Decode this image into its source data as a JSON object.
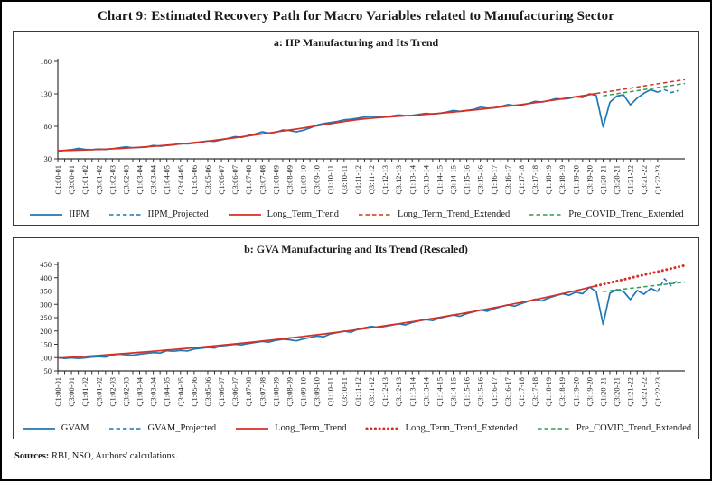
{
  "figure": {
    "title": "Chart 9: Estimated Recovery Path for Macro Variables related to Manufacturing Sector",
    "sources_label": "Sources:",
    "sources_text": " RBI, NSO, Authors' calculations."
  },
  "colors": {
    "blue": "#1f77b4",
    "red": "#d62f24",
    "green": "#2e9e4f",
    "axis": "#333333"
  },
  "chart_data": [
    {
      "type": "line",
      "title": "a: IIP Manufacturing and Its Trend",
      "xlabel": "",
      "ylabel": "",
      "ylim": [
        30,
        180
      ],
      "yticks": [
        30,
        80,
        130,
        180
      ],
      "grid": false,
      "legend_position": "bottom",
      "x_extent": 93,
      "x_tick_labels": [
        "Q1:00-01",
        "Q3:00-01",
        "Q1:01-02",
        "Q3:01-02",
        "Q1:02-03",
        "Q3:02-03",
        "Q1:03-04",
        "Q3:03-04",
        "Q1:04-05",
        "Q3:04-05",
        "Q1:05-06",
        "Q3:05-06",
        "Q1:06-07",
        "Q3:06-07",
        "Q1:07-08",
        "Q3:07-08",
        "Q1:08-09",
        "Q3:08-09",
        "Q1:09-10",
        "Q3:09-10",
        "Q1:10-11",
        "Q3:10-11",
        "Q1:11-12",
        "Q3:11-12",
        "Q1:12-13",
        "Q3:12-13",
        "Q1:13-14",
        "Q3:13-14",
        "Q1:14-15",
        "Q3:14-15",
        "Q1:15-16",
        "Q3:15-16",
        "Q1:16-17",
        "Q3:16-17",
        "Q1:17-18",
        "Q3:17-18",
        "Q1:18-19",
        "Q3:18-19",
        "Q1:19-20",
        "Q3:19-20",
        "Q1:20-21",
        "Q3:20-21",
        "Q1:21-22",
        "Q3:21-22",
        "Q1:22-23"
      ],
      "series": [
        {
          "name": "IIPM",
          "color": "blue",
          "style": "solid",
          "start": 0,
          "values": [
            42,
            43,
            44,
            46,
            44.5,
            44,
            45,
            44.5,
            45.5,
            47,
            48.5,
            47,
            47.5,
            48,
            50.5,
            49.5,
            50.5,
            51.5,
            53.5,
            53,
            54,
            55.5,
            57.5,
            57,
            59,
            61.5,
            64,
            63,
            66,
            68.5,
            71.5,
            69.5,
            71,
            74.5,
            73.5,
            71.5,
            74,
            77.5,
            82,
            84.5,
            86,
            87.5,
            90,
            91,
            92.5,
            94.5,
            95.5,
            94,
            94.5,
            96,
            97.5,
            96.5,
            97,
            98.5,
            100,
            99,
            100,
            102,
            104.5,
            103,
            104.5,
            106,
            109.5,
            108,
            108.5,
            110.5,
            113.5,
            112,
            112.5,
            115,
            118.5,
            117.5,
            119.5,
            122.5,
            122,
            123,
            125.5,
            124.5,
            130,
            127.5,
            79,
            117,
            126.5,
            128.5,
            113,
            123.5,
            131,
            136.5,
            132.5
          ]
        },
        {
          "name": "IIPM_Projected",
          "color": "blue",
          "style": "dashed",
          "start": 88,
          "values": [
            132.5,
            136.5,
            132,
            135
          ]
        },
        {
          "name": "Long_Term_Trend",
          "color": "red",
          "style": "solid",
          "start": 0,
          "values": [
            42.5,
            42.8,
            43.1,
            43.4,
            43.8,
            44.1,
            44.5,
            44.9,
            45.4,
            45.9,
            46.5,
            47.1,
            47.8,
            48.5,
            49.3,
            50.1,
            51,
            51.9,
            52.9,
            53.9,
            55,
            56.1,
            57.3,
            58.5,
            59.8,
            61.1,
            62.5,
            63.9,
            65.4,
            66.9,
            68.4,
            69.9,
            71.4,
            72.9,
            74.4,
            75.9,
            77.5,
            79.1,
            80.8,
            82.5,
            84.2,
            85.9,
            87.5,
            89,
            90.4,
            91.6,
            92.6,
            93.4,
            94.1,
            94.8,
            95.5,
            96.2,
            96.9,
            97.7,
            98.5,
            99.3,
            100.2,
            101.1,
            102.1,
            103.1,
            104.1,
            105.2,
            106.3,
            107.4,
            108.6,
            109.8,
            111,
            112.3,
            113.6,
            115,
            116.4,
            117.8,
            119.3,
            120.8,
            122.3,
            123.9,
            125.5,
            127.1,
            128.8,
            130.5
          ]
        },
        {
          "name": "Long_Term_Trend_Extended",
          "color": "red",
          "style": "dashed",
          "start": 79,
          "values": [
            130.5,
            132.2,
            133.8,
            135.5,
            137.1,
            138.8,
            140.4,
            142.1,
            143.7,
            145.4,
            147,
            148.7,
            150.3,
            152
          ]
        },
        {
          "name": "Pre_COVID_Trend_Extended",
          "color": "green",
          "style": "dashed",
          "start": 80,
          "values": [
            127,
            128.6,
            130.2,
            131.8,
            133.3,
            134.9,
            136.5,
            138.1,
            139.7,
            141.3,
            142.8,
            144.4,
            146
          ]
        }
      ]
    },
    {
      "type": "line",
      "title": "b: GVA Manufacturing and Its Trend (Rescaled)",
      "xlabel": "",
      "ylabel": "",
      "ylim": [
        50,
        450
      ],
      "yticks": [
        50,
        100,
        150,
        200,
        250,
        300,
        350,
        400,
        450
      ],
      "grid": false,
      "legend_position": "bottom",
      "x_extent": 93,
      "x_tick_labels": [
        "Q1:00-01",
        "Q3:00-01",
        "Q1:01-02",
        "Q3:01-02",
        "Q1:02-03",
        "Q3:02-03",
        "Q1:03-04",
        "Q3:03-04",
        "Q1:04-05",
        "Q3:04-05",
        "Q1:05-06",
        "Q3:05-06",
        "Q1:06-07",
        "Q3:06-07",
        "Q1:07-08",
        "Q3:07-08",
        "Q1:08-09",
        "Q3:08-09",
        "Q1:09-10",
        "Q3:09-10",
        "Q1:10-11",
        "Q3:10-11",
        "Q1:11-12",
        "Q3:11-12",
        "Q1:12-13",
        "Q3:12-13",
        "Q1:13-14",
        "Q3:13-14",
        "Q1:14-15",
        "Q3:14-15",
        "Q1:15-16",
        "Q3:15-16",
        "Q1:16-17",
        "Q3:16-17",
        "Q1:17-18",
        "Q3:17-18",
        "Q1:18-19",
        "Q3:18-19",
        "Q1:19-20",
        "Q3:19-20",
        "Q1:20-21",
        "Q3:20-21",
        "Q1:21-22",
        "Q3:21-22",
        "Q1:22-23"
      ],
      "series": [
        {
          "name": "GVAM",
          "color": "blue",
          "style": "solid",
          "start": 0,
          "values": [
            100,
            97,
            99,
            97,
            99,
            102,
            104,
            102,
            110,
            113,
            111,
            109,
            113,
            116,
            119,
            117,
            126,
            124,
            127,
            125,
            132,
            135,
            138,
            136,
            144,
            147,
            150,
            148,
            153,
            157,
            161,
            158,
            165,
            169,
            167,
            163,
            170,
            175,
            181,
            178,
            189,
            194,
            199,
            195,
            207,
            212,
            217,
            213,
            217,
            222,
            227,
            223,
            232,
            238,
            243,
            239,
            248,
            254,
            260,
            255,
            265,
            272,
            279,
            274,
            284,
            291,
            298,
            293,
            303,
            311,
            319,
            313,
            324,
            332,
            340,
            334,
            346,
            340,
            365,
            348,
            225,
            342,
            355,
            348,
            318,
            352,
            338,
            360,
            348
          ]
        },
        {
          "name": "GVAM_Projected",
          "color": "blue",
          "style": "dashed",
          "start": 88,
          "values": [
            348,
            396,
            370,
            392
          ]
        },
        {
          "name": "Long_Term_Trend",
          "color": "red",
          "style": "solid",
          "start": 0,
          "values": [
            98,
            99.7,
            101.3,
            103,
            104.8,
            106.6,
            108.4,
            110.2,
            112.1,
            114,
            115.9,
            117.9,
            119.9,
            121.9,
            124,
            126.1,
            128.2,
            130.4,
            132.6,
            134.9,
            137.2,
            139.5,
            141.9,
            144.3,
            146.7,
            149.2,
            151.7,
            154.3,
            156.9,
            159.6,
            162.3,
            165,
            167.8,
            170.7,
            173.6,
            176.5,
            179.5,
            182.5,
            185.6,
            188.8,
            192,
            195.2,
            198.5,
            201.9,
            205.3,
            208.8,
            212.3,
            215.9,
            219.6,
            223.3,
            227.1,
            230.9,
            234.8,
            238.8,
            242.8,
            247,
            251.1,
            255.4,
            259.7,
            264.1,
            268.6,
            273.2,
            277.8,
            282.5,
            287.3,
            292.1,
            297.1,
            302.1,
            307.2,
            312.4,
            317.7,
            323.1,
            328.6,
            334.1,
            339.8,
            345.5,
            351.4,
            357.3,
            363.4,
            369.5
          ]
        },
        {
          "name": "Long_Term_Trend_Extended",
          "color": "red",
          "style": "dotted",
          "start": 79,
          "values": [
            369.5,
            375.4,
            381.3,
            387.2,
            393.1,
            399,
            404.9,
            410.8,
            416.7,
            422.6,
            428.5,
            434.4,
            440.3,
            446.2
          ]
        },
        {
          "name": "Pre_COVID_Trend_Extended",
          "color": "green",
          "style": "dashed",
          "start": 80,
          "values": [
            348,
            351,
            354,
            357,
            360,
            363,
            366,
            369,
            372,
            375,
            378,
            381,
            384
          ]
        }
      ]
    }
  ]
}
